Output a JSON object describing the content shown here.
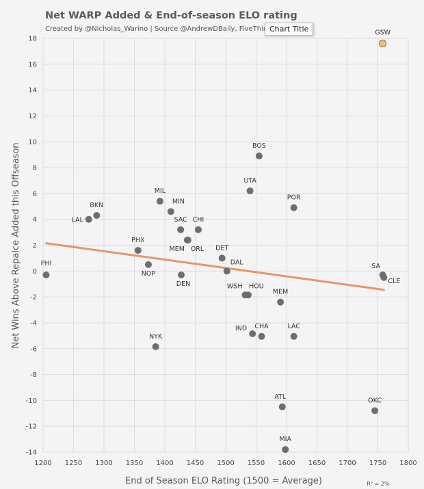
{
  "chart_data": {
    "type": "scatter",
    "title": "Net WARP Added & End-of-season ELO rating",
    "subtitle": "Created by @Nicholas_Warino | Source @AndrewDBaily, FiveThirtyEight",
    "tooltip": "Chart Title",
    "xlabel": "End of Season ELO Rating (1500 = Average)",
    "ylabel": "Net Wins Above Repalce Added this Offseason",
    "xlim": [
      1200,
      1800
    ],
    "ylim": [
      -14,
      18
    ],
    "xticks": [
      1200,
      1250,
      1300,
      1350,
      1400,
      1450,
      1500,
      1550,
      1600,
      1650,
      1700,
      1750,
      1800
    ],
    "yticks": [
      -14,
      -12,
      -10,
      -8,
      -6,
      -4,
      -2,
      0,
      2,
      4,
      6,
      8,
      10,
      12,
      14,
      16,
      18
    ],
    "grid": true,
    "r_squared_label": "R² = 2%",
    "point_color": "#6e6e6e",
    "highlight_color": "#f2c27c",
    "trendline_color": "#e8946a",
    "trendline": {
      "x": [
        1205,
        1760
      ],
      "y": [
        2.15,
        -1.45
      ]
    },
    "points": [
      {
        "team": "GSW",
        "x": 1758,
        "y": 17.6,
        "highlight": true
      },
      {
        "team": "BOS",
        "x": 1555,
        "y": 8.9
      },
      {
        "team": "UTA",
        "x": 1540,
        "y": 6.2
      },
      {
        "team": "POR",
        "x": 1612,
        "y": 4.9
      },
      {
        "team": "MIL",
        "x": 1392,
        "y": 5.4
      },
      {
        "team": "MIN",
        "x": 1410,
        "y": 4.6
      },
      {
        "team": "BKN",
        "x": 1288,
        "y": 4.3
      },
      {
        "team": "LAL",
        "x": 1275,
        "y": 4.0
      },
      {
        "team": "SAC",
        "x": 1426,
        "y": 3.2
      },
      {
        "team": "CHI",
        "x": 1455,
        "y": 3.2
      },
      {
        "team": "ORL",
        "x": 1438,
        "y": 2.4
      },
      {
        "team": "MEM",
        "x": 1437,
        "y": 2.4
      },
      {
        "team": "PHX",
        "x": 1356,
        "y": 1.6
      },
      {
        "team": "DET",
        "x": 1494,
        "y": 1.0
      },
      {
        "team": "DAL",
        "x": 1502,
        "y": 0.0
      },
      {
        "team": "PHI",
        "x": 1205,
        "y": -0.3
      },
      {
        "team": "NOP",
        "x": 1373,
        "y": 0.5
      },
      {
        "team": "DEN",
        "x": 1427,
        "y": -0.3
      },
      {
        "team": "SA",
        "x": 1758,
        "y": -0.3
      },
      {
        "team": "CLE",
        "x": 1760,
        "y": -0.5
      },
      {
        "team": "WSH",
        "x": 1532,
        "y": -1.85
      },
      {
        "team": "HOU",
        "x": 1537,
        "y": -1.85
      },
      {
        "team": "MEM",
        "x": 1590,
        "y": -2.4
      },
      {
        "team": "IND",
        "x": 1544,
        "y": -4.85
      },
      {
        "team": "CHA",
        "x": 1559,
        "y": -5.05
      },
      {
        "team": "LAC",
        "x": 1612,
        "y": -5.05
      },
      {
        "team": "NYK",
        "x": 1385,
        "y": -5.85
      },
      {
        "team": "ATL",
        "x": 1593,
        "y": -10.5
      },
      {
        "team": "OKC",
        "x": 1745,
        "y": -10.8
      },
      {
        "team": "MIA",
        "x": 1598,
        "y": -13.8
      }
    ]
  }
}
